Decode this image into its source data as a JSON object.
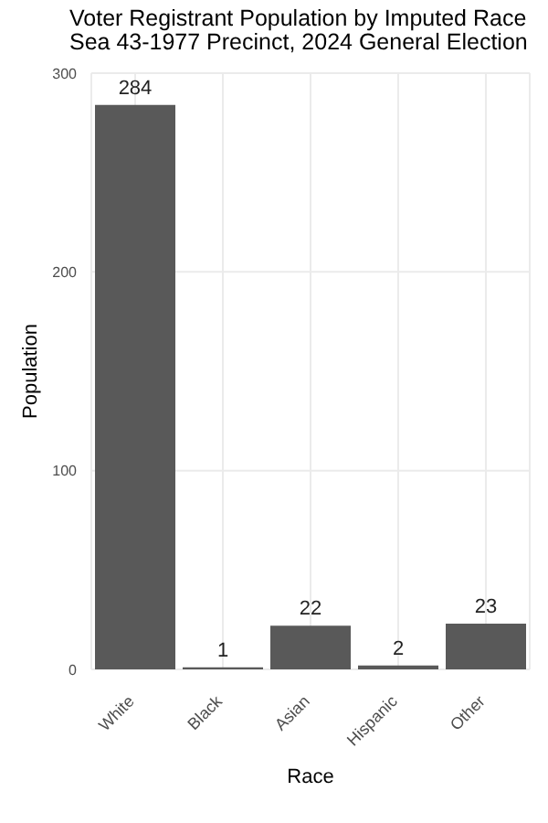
{
  "chart_data": {
    "type": "bar",
    "title": "Voter Registrant Population by Imputed Race",
    "subtitle": "Sea 43-1977 Precinct,  2024 General Election",
    "xlabel": "Race",
    "ylabel": "Population",
    "categories": [
      "White",
      "Black",
      "Asian",
      "Hispanic",
      "Other"
    ],
    "values": [
      284,
      1,
      22,
      2,
      23
    ],
    "color": "#595959",
    "ylim": [
      0,
      300
    ],
    "yticks": [
      0,
      100,
      200,
      300
    ],
    "grid": true,
    "data_labels": true
  }
}
